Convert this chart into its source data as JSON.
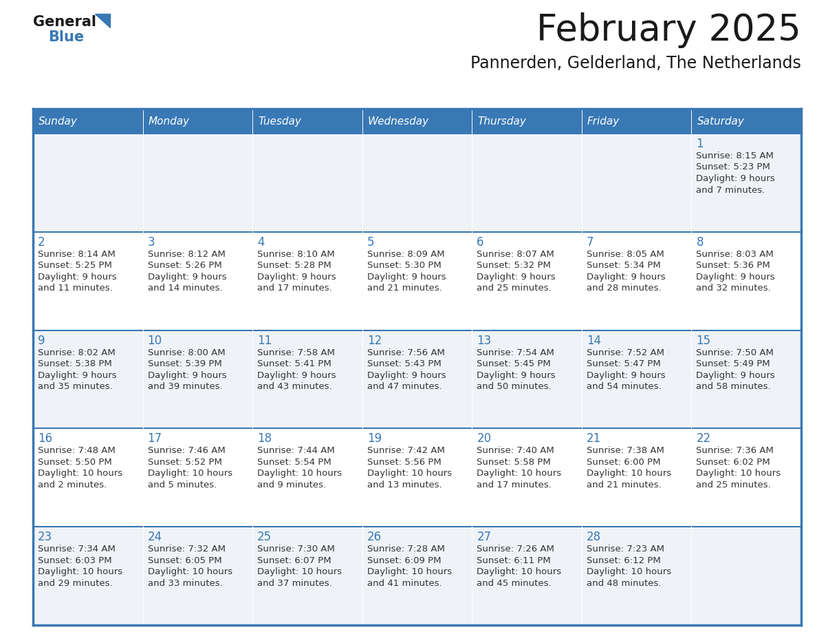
{
  "title": "February 2025",
  "subtitle": "Pannerden, Gelderland, The Netherlands",
  "days_of_week": [
    "Sunday",
    "Monday",
    "Tuesday",
    "Wednesday",
    "Thursday",
    "Friday",
    "Saturday"
  ],
  "header_bg": "#3878b4",
  "header_text": "#ffffff",
  "row_bg_odd": "#eff3f7",
  "row_bg_even": "#ffffff",
  "grid_line_color": "#3878b4",
  "day_number_color": "#3878b4",
  "text_color": "#333333",
  "calendar": [
    [
      null,
      null,
      null,
      null,
      null,
      null,
      {
        "day": "1",
        "sunrise": "8:15 AM",
        "sunset": "5:23 PM",
        "daylight_h": "9 hours",
        "daylight_m": "and 7 minutes."
      }
    ],
    [
      {
        "day": "2",
        "sunrise": "8:14 AM",
        "sunset": "5:25 PM",
        "daylight_h": "9 hours",
        "daylight_m": "and 11 minutes."
      },
      {
        "day": "3",
        "sunrise": "8:12 AM",
        "sunset": "5:26 PM",
        "daylight_h": "9 hours",
        "daylight_m": "and 14 minutes."
      },
      {
        "day": "4",
        "sunrise": "8:10 AM",
        "sunset": "5:28 PM",
        "daylight_h": "9 hours",
        "daylight_m": "and 17 minutes."
      },
      {
        "day": "5",
        "sunrise": "8:09 AM",
        "sunset": "5:30 PM",
        "daylight_h": "9 hours",
        "daylight_m": "and 21 minutes."
      },
      {
        "day": "6",
        "sunrise": "8:07 AM",
        "sunset": "5:32 PM",
        "daylight_h": "9 hours",
        "daylight_m": "and 25 minutes."
      },
      {
        "day": "7",
        "sunrise": "8:05 AM",
        "sunset": "5:34 PM",
        "daylight_h": "9 hours",
        "daylight_m": "and 28 minutes."
      },
      {
        "day": "8",
        "sunrise": "8:03 AM",
        "sunset": "5:36 PM",
        "daylight_h": "9 hours",
        "daylight_m": "and 32 minutes."
      }
    ],
    [
      {
        "day": "9",
        "sunrise": "8:02 AM",
        "sunset": "5:38 PM",
        "daylight_h": "9 hours",
        "daylight_m": "and 35 minutes."
      },
      {
        "day": "10",
        "sunrise": "8:00 AM",
        "sunset": "5:39 PM",
        "daylight_h": "9 hours",
        "daylight_m": "and 39 minutes."
      },
      {
        "day": "11",
        "sunrise": "7:58 AM",
        "sunset": "5:41 PM",
        "daylight_h": "9 hours",
        "daylight_m": "and 43 minutes."
      },
      {
        "day": "12",
        "sunrise": "7:56 AM",
        "sunset": "5:43 PM",
        "daylight_h": "9 hours",
        "daylight_m": "and 47 minutes."
      },
      {
        "day": "13",
        "sunrise": "7:54 AM",
        "sunset": "5:45 PM",
        "daylight_h": "9 hours",
        "daylight_m": "and 50 minutes."
      },
      {
        "day": "14",
        "sunrise": "7:52 AM",
        "sunset": "5:47 PM",
        "daylight_h": "9 hours",
        "daylight_m": "and 54 minutes."
      },
      {
        "day": "15",
        "sunrise": "7:50 AM",
        "sunset": "5:49 PM",
        "daylight_h": "9 hours",
        "daylight_m": "and 58 minutes."
      }
    ],
    [
      {
        "day": "16",
        "sunrise": "7:48 AM",
        "sunset": "5:50 PM",
        "daylight_h": "10 hours",
        "daylight_m": "and 2 minutes."
      },
      {
        "day": "17",
        "sunrise": "7:46 AM",
        "sunset": "5:52 PM",
        "daylight_h": "10 hours",
        "daylight_m": "and 5 minutes."
      },
      {
        "day": "18",
        "sunrise": "7:44 AM",
        "sunset": "5:54 PM",
        "daylight_h": "10 hours",
        "daylight_m": "and 9 minutes."
      },
      {
        "day": "19",
        "sunrise": "7:42 AM",
        "sunset": "5:56 PM",
        "daylight_h": "10 hours",
        "daylight_m": "and 13 minutes."
      },
      {
        "day": "20",
        "sunrise": "7:40 AM",
        "sunset": "5:58 PM",
        "daylight_h": "10 hours",
        "daylight_m": "and 17 minutes."
      },
      {
        "day": "21",
        "sunrise": "7:38 AM",
        "sunset": "6:00 PM",
        "daylight_h": "10 hours",
        "daylight_m": "and 21 minutes."
      },
      {
        "day": "22",
        "sunrise": "7:36 AM",
        "sunset": "6:02 PM",
        "daylight_h": "10 hours",
        "daylight_m": "and 25 minutes."
      }
    ],
    [
      {
        "day": "23",
        "sunrise": "7:34 AM",
        "sunset": "6:03 PM",
        "daylight_h": "10 hours",
        "daylight_m": "and 29 minutes."
      },
      {
        "day": "24",
        "sunrise": "7:32 AM",
        "sunset": "6:05 PM",
        "daylight_h": "10 hours",
        "daylight_m": "and 33 minutes."
      },
      {
        "day": "25",
        "sunrise": "7:30 AM",
        "sunset": "6:07 PM",
        "daylight_h": "10 hours",
        "daylight_m": "and 37 minutes."
      },
      {
        "day": "26",
        "sunrise": "7:28 AM",
        "sunset": "6:09 PM",
        "daylight_h": "10 hours",
        "daylight_m": "and 41 minutes."
      },
      {
        "day": "27",
        "sunrise": "7:26 AM",
        "sunset": "6:11 PM",
        "daylight_h": "10 hours",
        "daylight_m": "and 45 minutes."
      },
      {
        "day": "28",
        "sunrise": "7:23 AM",
        "sunset": "6:12 PM",
        "daylight_h": "10 hours",
        "daylight_m": "and 48 minutes."
      },
      null
    ]
  ]
}
